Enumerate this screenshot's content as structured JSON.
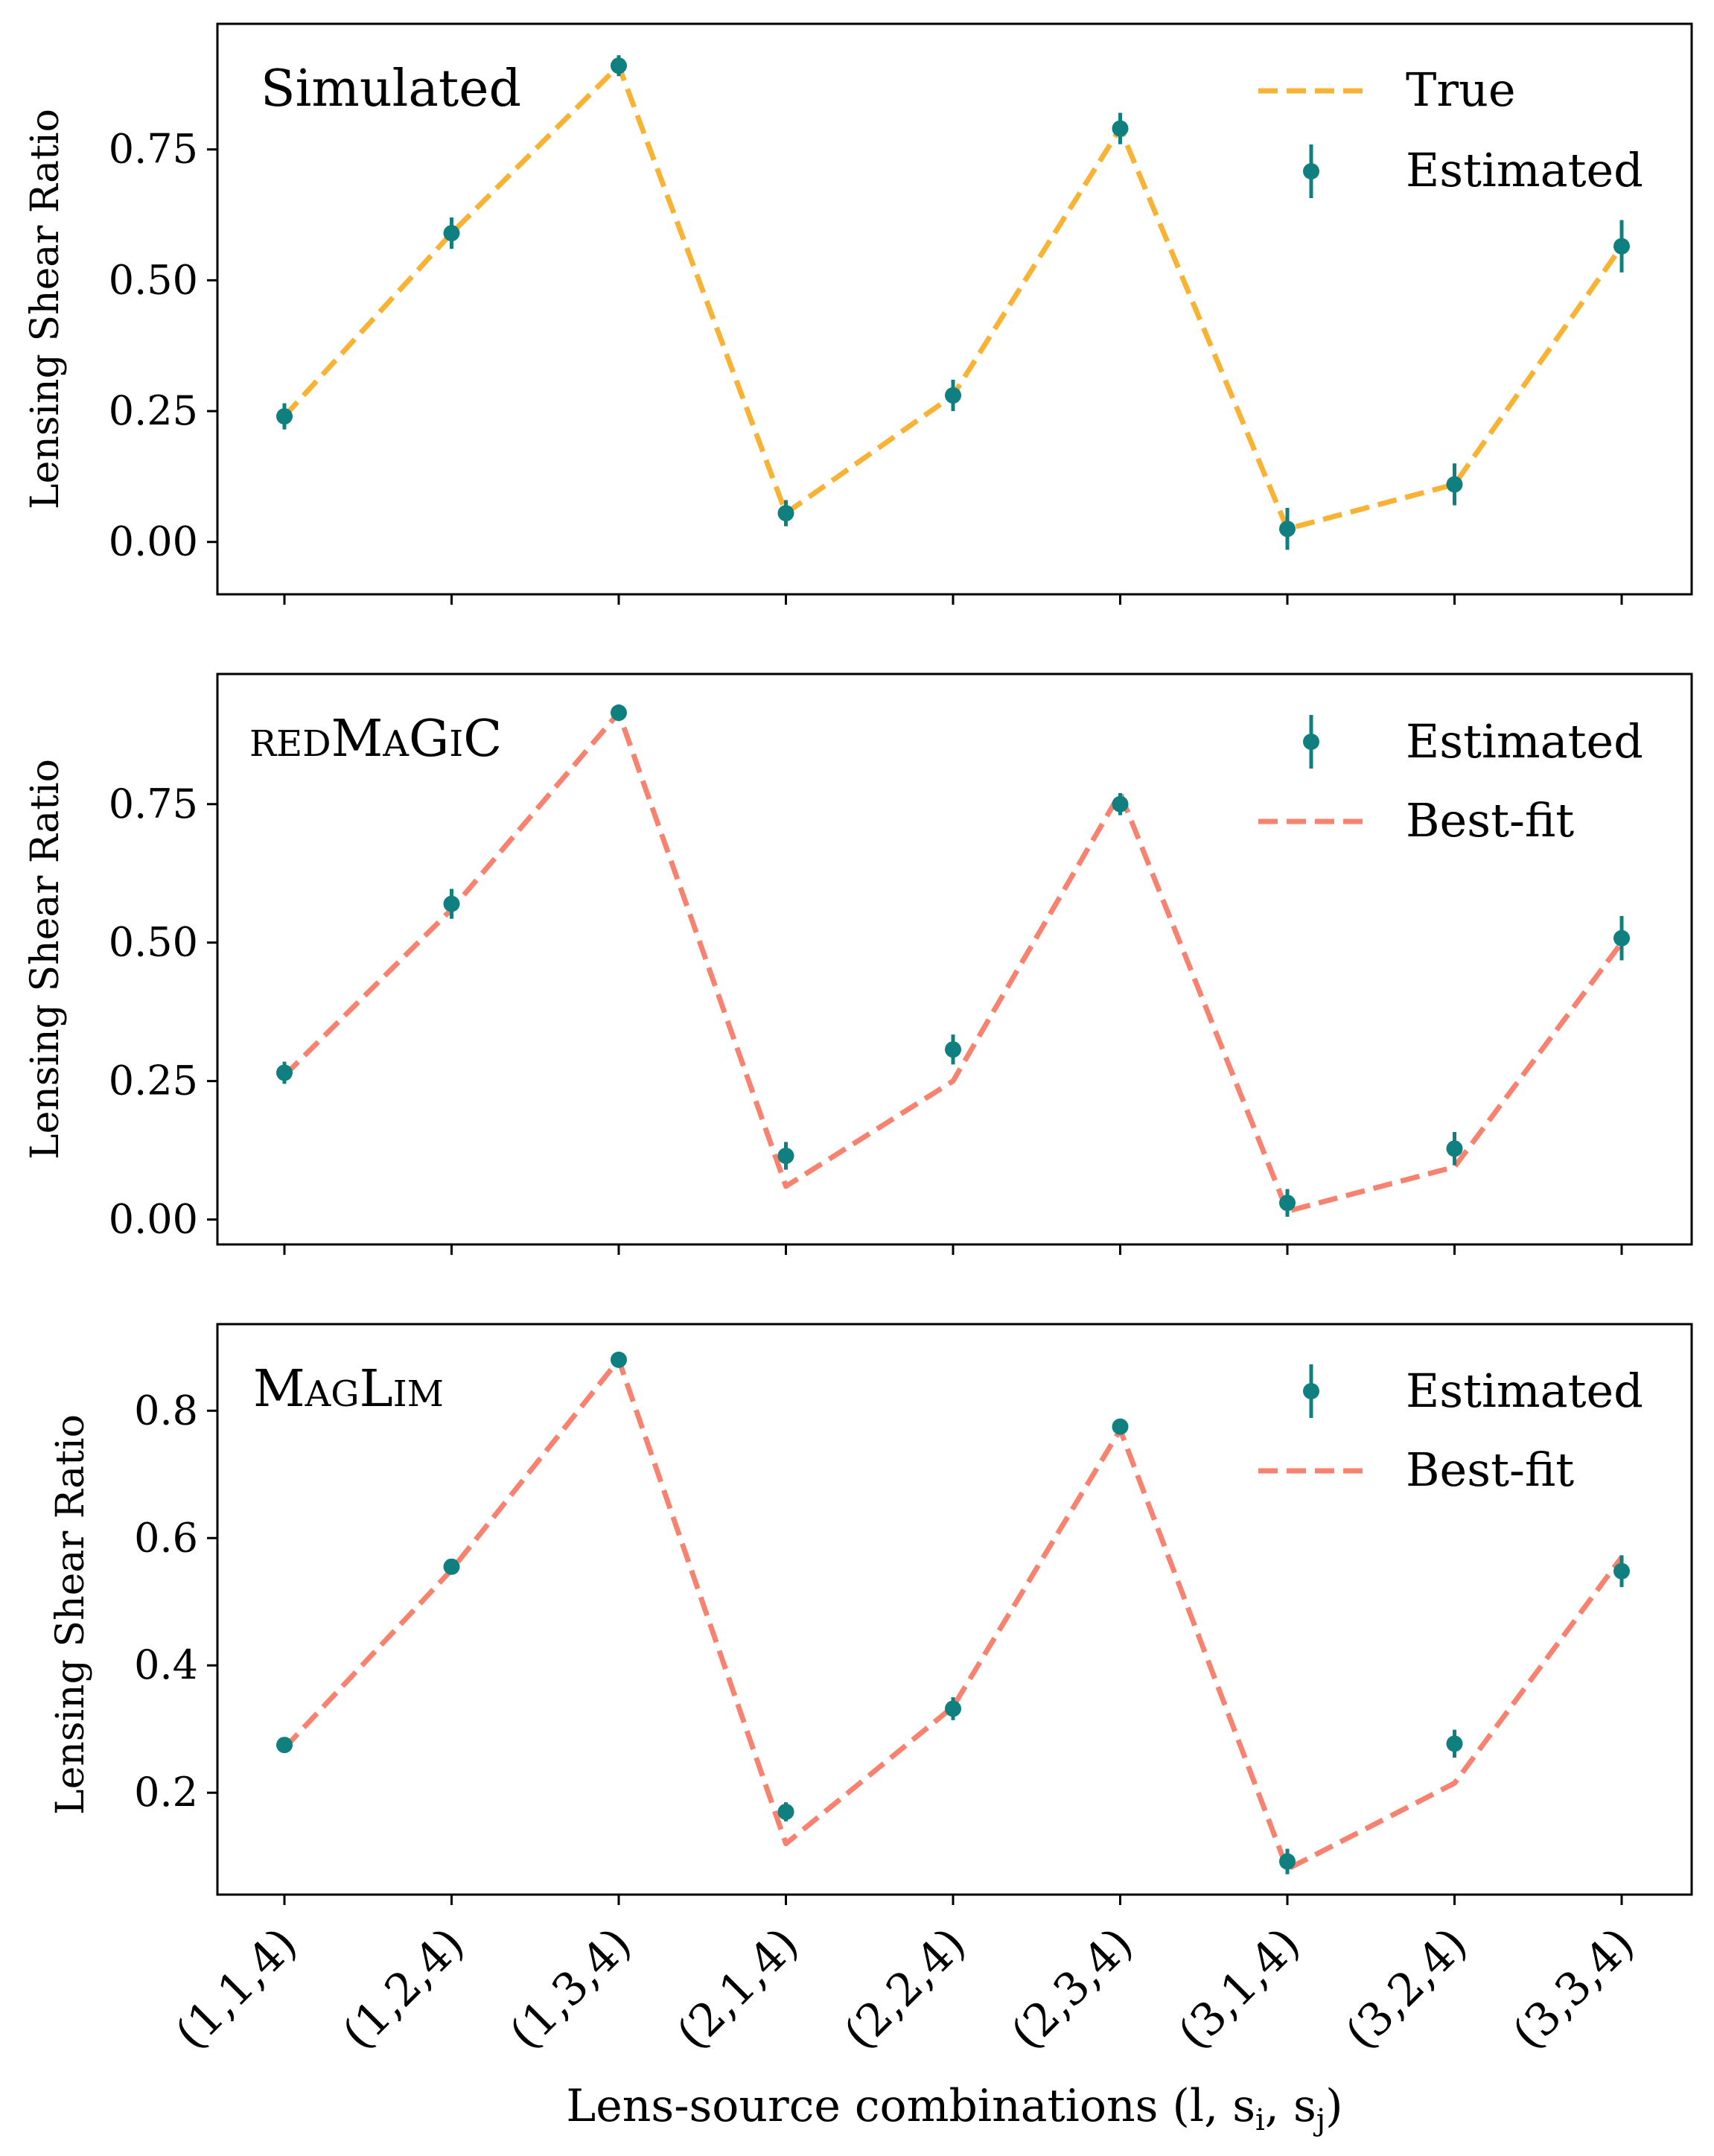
{
  "figure": {
    "x_axis_label": "Lens-source combinations (l, s",
    "x_axis_label_sub_i": "i",
    "x_axis_label_mid": ", s",
    "x_axis_label_sub_j": "j",
    "x_axis_label_end": ")"
  },
  "colors": {
    "estimated": "#0f7f7f",
    "true_line": "#f8b335",
    "bestfit_line": "#f7826f",
    "axes": "#000000"
  },
  "chart_data": [
    {
      "type": "line",
      "title": "Simulated",
      "title_smallcaps": false,
      "ylabel": "Lensing Shear Ratio",
      "categories": [
        "(1,1,4)",
        "(1,2,4)",
        "(1,3,4)",
        "(2,1,4)",
        "(2,2,4)",
        "(2,3,4)",
        "(3,1,4)",
        "(3,2,4)",
        "(3,3,4)"
      ],
      "ylim": [
        -0.1,
        0.99
      ],
      "yticks": [
        0.0,
        0.25,
        0.5,
        0.75
      ],
      "ytick_labels": [
        "0.00",
        "0.25",
        "0.50",
        "0.75"
      ],
      "show_xtick_labels": false,
      "legend_position": "top-right",
      "legend_order": [
        "line",
        "points"
      ],
      "series": [
        {
          "name": "True",
          "kind": "line",
          "color": "#f8b335",
          "values": [
            0.24,
            0.59,
            0.91,
            0.055,
            0.28,
            0.79,
            0.025,
            0.11,
            0.565
          ]
        },
        {
          "name": "Estimated",
          "kind": "errorbar",
          "color": "#0f7f7f",
          "values": [
            0.24,
            0.59,
            0.91,
            0.055,
            0.28,
            0.79,
            0.025,
            0.11,
            0.565
          ],
          "errors": [
            0.025,
            0.03,
            0.02,
            0.025,
            0.03,
            0.03,
            0.04,
            0.04,
            0.05
          ]
        }
      ]
    },
    {
      "type": "line",
      "title": "redMaGiC",
      "title_smallcaps": true,
      "ylabel": "Lensing Shear Ratio",
      "categories": [
        "(1,1,4)",
        "(1,2,4)",
        "(1,3,4)",
        "(2,1,4)",
        "(2,2,4)",
        "(2,3,4)",
        "(3,1,4)",
        "(3,2,4)",
        "(3,3,4)"
      ],
      "ylim": [
        -0.045,
        0.985
      ],
      "yticks": [
        0.0,
        0.25,
        0.5,
        0.75
      ],
      "ytick_labels": [
        "0.00",
        "0.25",
        "0.50",
        "0.75"
      ],
      "show_xtick_labels": false,
      "legend_position": "top-right",
      "legend_order": [
        "points",
        "line"
      ],
      "series": [
        {
          "name": "Estimated",
          "kind": "errorbar",
          "color": "#0f7f7f",
          "values": [
            0.265,
            0.57,
            0.915,
            0.115,
            0.307,
            0.75,
            0.03,
            0.128,
            0.508
          ],
          "errors": [
            0.02,
            0.027,
            0.015,
            0.025,
            0.027,
            0.02,
            0.025,
            0.03,
            0.04
          ]
        },
        {
          "name": "Best-fit",
          "kind": "line",
          "color": "#f7826f",
          "values": [
            0.26,
            0.56,
            0.915,
            0.06,
            0.25,
            0.77,
            0.015,
            0.095,
            0.5
          ]
        }
      ]
    },
    {
      "type": "line",
      "title": "MagLim",
      "title_smallcaps": true,
      "ylabel": "Lensing Shear Ratio",
      "categories": [
        "(1,1,4)",
        "(1,2,4)",
        "(1,3,4)",
        "(2,1,4)",
        "(2,2,4)",
        "(2,3,4)",
        "(3,1,4)",
        "(3,2,4)",
        "(3,3,4)"
      ],
      "ylim": [
        0.04,
        0.936
      ],
      "yticks": [
        0.2,
        0.4,
        0.6,
        0.8
      ],
      "ytick_labels": [
        "0.2",
        "0.4",
        "0.6",
        "0.8"
      ],
      "show_xtick_labels": true,
      "legend_position": "top-right",
      "legend_order": [
        "points",
        "line"
      ],
      "series": [
        {
          "name": "Estimated",
          "kind": "errorbar",
          "color": "#0f7f7f",
          "values": [
            0.275,
            0.555,
            0.88,
            0.17,
            0.332,
            0.775,
            0.092,
            0.277,
            0.548
          ],
          "errors": [
            0.012,
            0.012,
            0.012,
            0.015,
            0.018,
            0.012,
            0.02,
            0.022,
            0.025
          ]
        },
        {
          "name": "Best-fit",
          "kind": "line",
          "color": "#f7826f",
          "values": [
            0.27,
            0.55,
            0.88,
            0.12,
            0.335,
            0.77,
            0.08,
            0.215,
            0.57
          ]
        }
      ]
    }
  ]
}
